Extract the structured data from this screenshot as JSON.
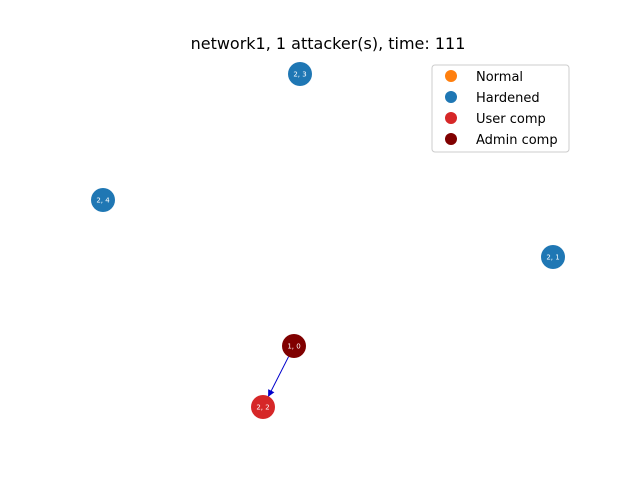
{
  "title": "network1, 1 attacker(s), time: 111",
  "legend": {
    "items": [
      {
        "label": "Normal",
        "color": "#ff7f0e"
      },
      {
        "label": "Hardened",
        "color": "#1f77b4"
      },
      {
        "label": "User comp",
        "color": "#d62728"
      },
      {
        "label": "Admin comp",
        "color": "#800000"
      }
    ]
  },
  "nodes": [
    {
      "id": "2, 3",
      "state": "Hardened",
      "color": "#1f77b4"
    },
    {
      "id": "2, 4",
      "state": "Hardened",
      "color": "#1f77b4"
    },
    {
      "id": "2, 1",
      "state": "Hardened",
      "color": "#1f77b4"
    },
    {
      "id": "1, 0",
      "state": "Admin comp",
      "color": "#800000"
    },
    {
      "id": "2, 2",
      "state": "User comp",
      "color": "#d62728"
    }
  ],
  "edges": [
    {
      "from": "1, 0",
      "to": "2, 2",
      "color": "#0000cc"
    }
  ]
}
